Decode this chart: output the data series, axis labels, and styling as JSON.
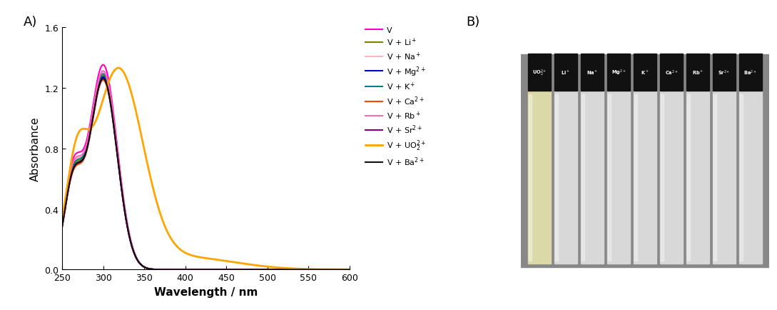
{
  "xlim": [
    250,
    600
  ],
  "ylim": [
    0.0,
    1.6
  ],
  "xlabel": "Wavelength / nm",
  "ylabel": "Absorbance",
  "xticks": [
    250,
    300,
    350,
    400,
    450,
    500,
    550,
    600
  ],
  "yticks": [
    0.0,
    0.4,
    0.8,
    1.2,
    1.6
  ],
  "panel_A_label": "A)",
  "panel_B_label": "B)",
  "legend_entries": [
    {
      "label": "V",
      "color": "#ff00cc",
      "lw": 1.5
    },
    {
      "label": "V + Li$^+$",
      "color": "#808000",
      "lw": 1.5
    },
    {
      "label": "V + Na$^+$",
      "color": "#ffb6c1",
      "lw": 1.5
    },
    {
      "label": "V + Mg$^{2+}$",
      "color": "#0000cd",
      "lw": 1.5
    },
    {
      "label": "V + K$^+$",
      "color": "#008080",
      "lw": 1.5
    },
    {
      "label": "V + Ca$^{2+}$",
      "color": "#ff4500",
      "lw": 1.5
    },
    {
      "label": "V + Rb$^+$",
      "color": "#ff69b4",
      "lw": 1.5
    },
    {
      "label": "V + Sr$^{2+}$",
      "color": "#800080",
      "lw": 1.5
    },
    {
      "label": "V + UO$_2^{2+}$",
      "color": "#ffa500",
      "lw": 2.0
    },
    {
      "label": "V + Ba$^{2+}$",
      "color": "#111111",
      "lw": 1.5
    }
  ],
  "background_color": "#ffffff",
  "fig_width": 10.89,
  "fig_height": 4.35,
  "dpi": 100,
  "vial_labels": [
    "UO$_2^{2+}$",
    "Li$^+$",
    "Na$^+$",
    "Mg$^{2+}$",
    "K$^+$",
    "Ca$^{2+}$",
    "Rb$^+$",
    "Sr$^{2+}$",
    "Ba$^{2+}$"
  ],
  "vial_body_colors": [
    "#dcd9a8",
    "#d8d8d8",
    "#d8d8d8",
    "#d8d8d8",
    "#d8d8d8",
    "#d8d8d8",
    "#d8d8d8",
    "#d8d8d8",
    "#d8d8d8"
  ],
  "vial_cap_color": "#111111",
  "photo_bg_color": "#888888"
}
